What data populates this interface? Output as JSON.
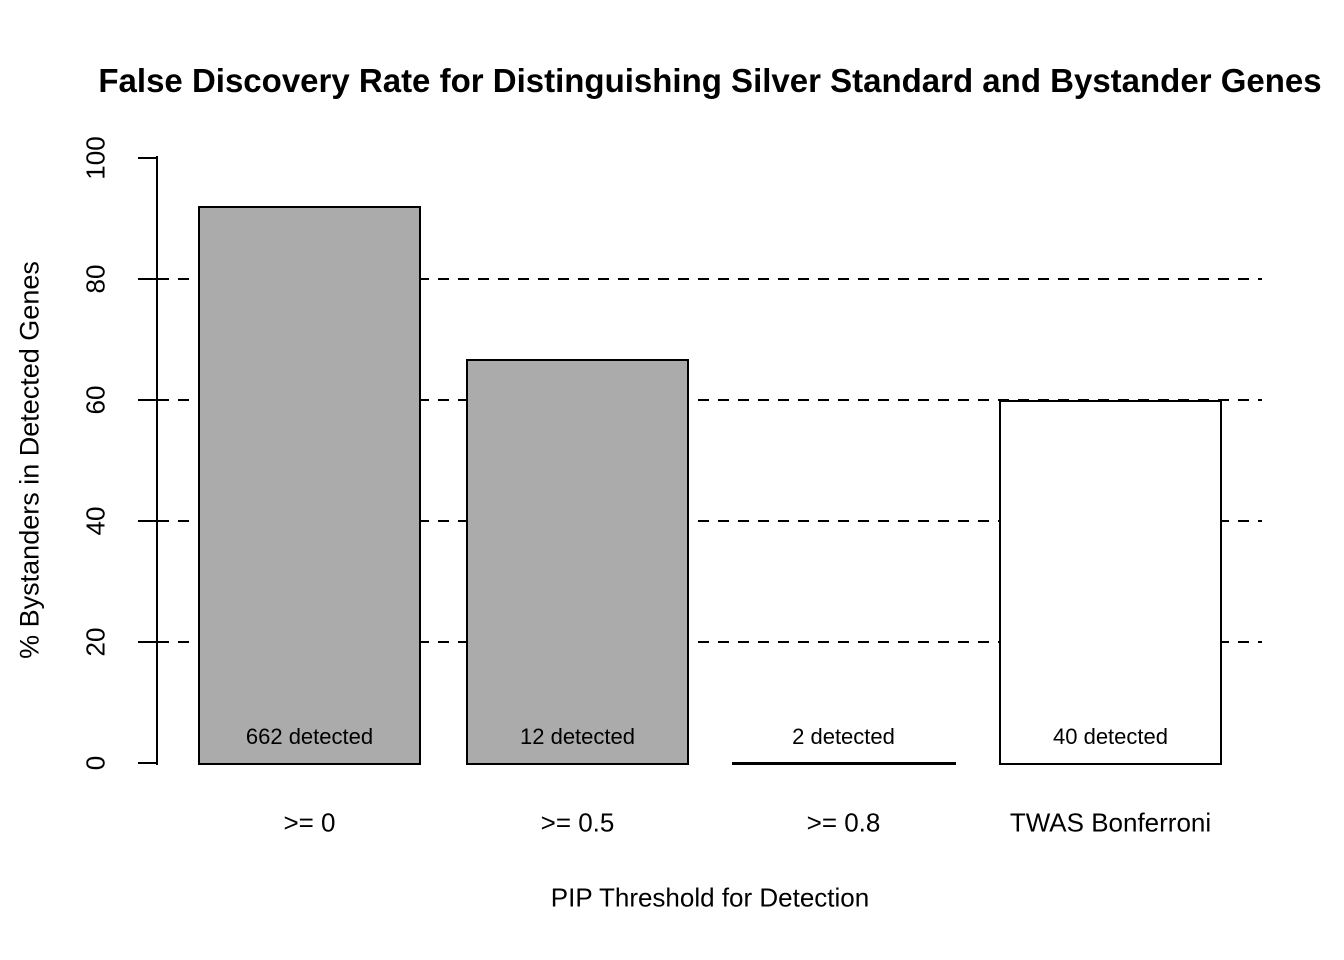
{
  "page": {
    "background": "#FFFFFF",
    "text_color": "#000000"
  },
  "chart_data": {
    "type": "bar",
    "title": "False Discovery Rate for Distinguishing Silver Standard and Bystander Genes",
    "xlabel": "PIP Threshold for Detection",
    "ylabel": "% Bystanders in Detected Genes",
    "categories": [
      ">= 0",
      ">= 0.5",
      ">= 0.8",
      "TWAS Bonferroni"
    ],
    "values": [
      92.1,
      66.7,
      0,
      60
    ],
    "bar_labels": [
      "662 detected",
      "12 detected",
      "2 detected",
      "40 detected"
    ],
    "bar_fill_colors": [
      "#ABABAB",
      "#ABABAB",
      "#ABABAB",
      "#FFFFFF"
    ],
    "bar_border_color": "#000000",
    "ylim": [
      0,
      100
    ],
    "yticks": [
      0,
      20,
      40,
      60,
      80,
      100
    ],
    "gridline_values": [
      20,
      40,
      60,
      80
    ],
    "gridline_style": "dashed",
    "grid_color": "#000000",
    "legend_position": "none"
  }
}
